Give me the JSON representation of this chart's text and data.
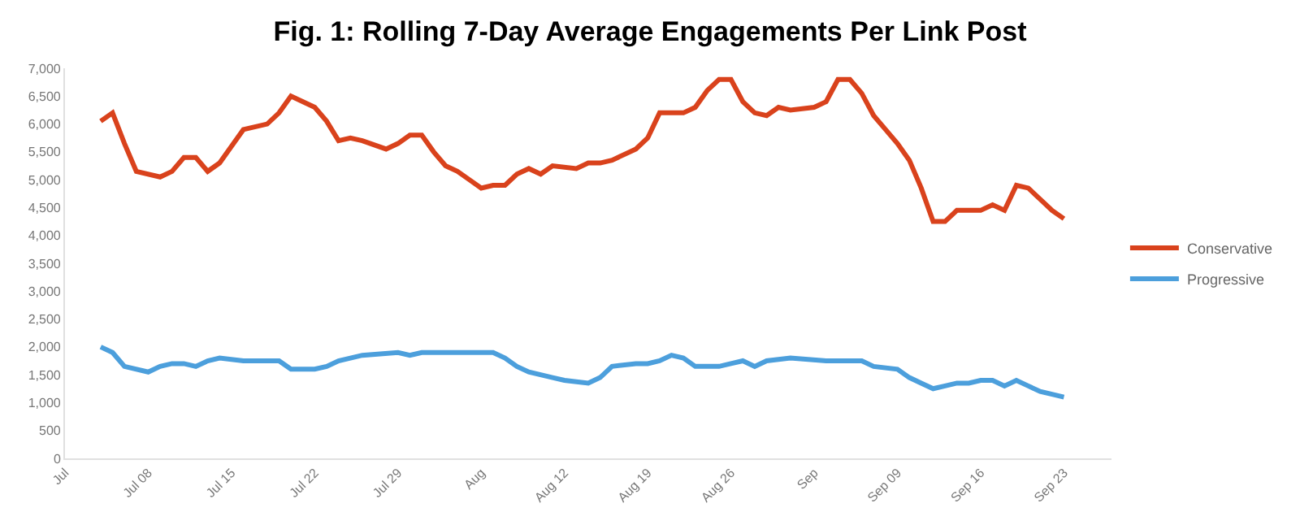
{
  "chart_data": {
    "type": "line",
    "title": "Fig. 1: Rolling 7-Day Average Engagements Per Link Post",
    "series": [
      {
        "name": "Conservative",
        "color": "#d9421c",
        "x": [
          "--07-04",
          "--07-05",
          "--07-06",
          "--07-07",
          "--07-09",
          "--07-10",
          "--07-11",
          "--07-12",
          "--07-13",
          "--07-14",
          "--07-15",
          "--07-16",
          "--07-18",
          "--07-19",
          "--07-20",
          "--07-22",
          "--07-23",
          "--07-24",
          "--07-25",
          "--07-26",
          "--07-28",
          "--07-29",
          "--07-30",
          "--07-31",
          "--08-01",
          "--08-02",
          "--08-03",
          "--08-04",
          "--08-05",
          "--08-06",
          "--08-07",
          "--08-08",
          "--08-09",
          "--08-10",
          "--08-11",
          "--08-13",
          "--08-14",
          "--08-15",
          "--08-16",
          "--08-18",
          "--08-19",
          "--08-20",
          "--08-22",
          "--08-23",
          "--08-24",
          "--08-25",
          "--08-26",
          "--08-27",
          "--08-28",
          "--08-29",
          "--08-30",
          "--08-31",
          "--09-02",
          "--09-03",
          "--09-04",
          "--09-05",
          "--09-06",
          "--09-07",
          "--09-08",
          "--09-09",
          "--09-10",
          "--09-11",
          "--09-12",
          "--09-13",
          "--09-14",
          "--09-16",
          "--09-17",
          "--09-18",
          "--09-19",
          "--09-20",
          "--09-21",
          "--09-22",
          "--09-23"
        ],
        "values": [
          6050,
          6200,
          5650,
          5150,
          5050,
          5150,
          5400,
          5400,
          5150,
          5300,
          5600,
          5900,
          6000,
          6200,
          6500,
          6300,
          6050,
          5700,
          5750,
          5700,
          5550,
          5650,
          5800,
          5800,
          5500,
          5250,
          5150,
          5000,
          4850,
          4900,
          4900,
          5100,
          5200,
          5100,
          5250,
          5200,
          5300,
          5300,
          5350,
          5550,
          5750,
          6200,
          6200,
          6300,
          6600,
          6800,
          6800,
          6400,
          6200,
          6150,
          6300,
          6250,
          6300,
          6400,
          6800,
          6800,
          6550,
          6150,
          5900,
          5650,
          5350,
          4850,
          4250,
          4250,
          4450,
          4450,
          4550,
          4450,
          4900,
          4850,
          4650,
          4450,
          4300
        ]
      },
      {
        "name": "Progressive",
        "color": "#4c9fdc",
        "x": [
          "--07-04",
          "--07-05",
          "--07-06",
          "--07-08",
          "--07-09",
          "--07-10",
          "--07-11",
          "--07-12",
          "--07-13",
          "--07-14",
          "--07-16",
          "--07-18",
          "--07-19",
          "--07-20",
          "--07-22",
          "--07-23",
          "--07-24",
          "--07-26",
          "--07-29",
          "--07-30",
          "--07-31",
          "--08-04",
          "--08-06",
          "--08-07",
          "--08-08",
          "--08-09",
          "--08-11",
          "--08-12",
          "--08-14",
          "--08-15",
          "--08-16",
          "--08-18",
          "--08-19",
          "--08-20",
          "--08-21",
          "--08-22",
          "--08-23",
          "--08-25",
          "--08-26",
          "--08-27",
          "--08-28",
          "--08-29",
          "--08-31",
          "--09-03",
          "--09-04",
          "--09-06",
          "--09-07",
          "--09-09",
          "--09-10",
          "--09-11",
          "--09-12",
          "--09-13",
          "--09-14",
          "--09-15",
          "--09-16",
          "--09-17",
          "--09-18",
          "--09-19",
          "--09-20",
          "--09-21",
          "--09-22",
          "--09-23"
        ],
        "values": [
          2000,
          1900,
          1650,
          1550,
          1650,
          1700,
          1700,
          1650,
          1750,
          1800,
          1750,
          1750,
          1750,
          1600,
          1600,
          1650,
          1750,
          1850,
          1900,
          1850,
          1900,
          1900,
          1900,
          1800,
          1650,
          1550,
          1450,
          1400,
          1350,
          1450,
          1650,
          1700,
          1700,
          1750,
          1850,
          1800,
          1650,
          1650,
          1700,
          1750,
          1650,
          1750,
          1800,
          1750,
          1750,
          1750,
          1650,
          1600,
          1450,
          1350,
          1250,
          1300,
          1350,
          1350,
          1400,
          1400,
          1300,
          1400,
          1300,
          1200,
          1150,
          1100
        ]
      }
    ],
    "xlim": [
      "--07-01",
      "--09-27"
    ],
    "xticks": [
      {
        "value": "--07-01",
        "label": "Jul"
      },
      {
        "value": "--07-08",
        "label": "Jul 08"
      },
      {
        "value": "--07-15",
        "label": "Jul 15"
      },
      {
        "value": "--07-22",
        "label": "Jul 22"
      },
      {
        "value": "--07-29",
        "label": "Jul 29"
      },
      {
        "value": "--08-05",
        "label": "Aug"
      },
      {
        "value": "--08-12",
        "label": "Aug 12"
      },
      {
        "value": "--08-19",
        "label": "Aug 19"
      },
      {
        "value": "--08-26",
        "label": "Aug 26"
      },
      {
        "value": "--09-02",
        "label": "Sep"
      },
      {
        "value": "--09-09",
        "label": "Sep 09"
      },
      {
        "value": "--09-16",
        "label": "Sep 16"
      },
      {
        "value": "--09-23",
        "label": "Sep 23"
      }
    ],
    "ylim": [
      0,
      7000
    ],
    "yticks": [
      0,
      {
        "value": 500,
        "label": "500"
      },
      {
        "value": 1000,
        "label": "1,000"
      },
      {
        "value": 1500,
        "label": "1,500"
      },
      {
        "value": 2000,
        "label": "2,000"
      },
      {
        "value": 2500,
        "label": "2,500"
      },
      {
        "value": 3000,
        "label": "3,000"
      },
      {
        "value": 3500,
        "label": "3,500"
      },
      {
        "value": 4000,
        "label": "4,000"
      },
      {
        "value": 4500,
        "label": "4,500"
      },
      {
        "value": 5000,
        "label": "5,000"
      },
      {
        "value": 5500,
        "label": "5,500"
      },
      {
        "value": 6000,
        "label": "6,000"
      },
      {
        "value": 6500,
        "label": "6,500"
      },
      {
        "value": 7000,
        "label": "7,000"
      }
    ],
    "grid": false,
    "legend": "right",
    "marker": "none",
    "line_style": "solid"
  }
}
